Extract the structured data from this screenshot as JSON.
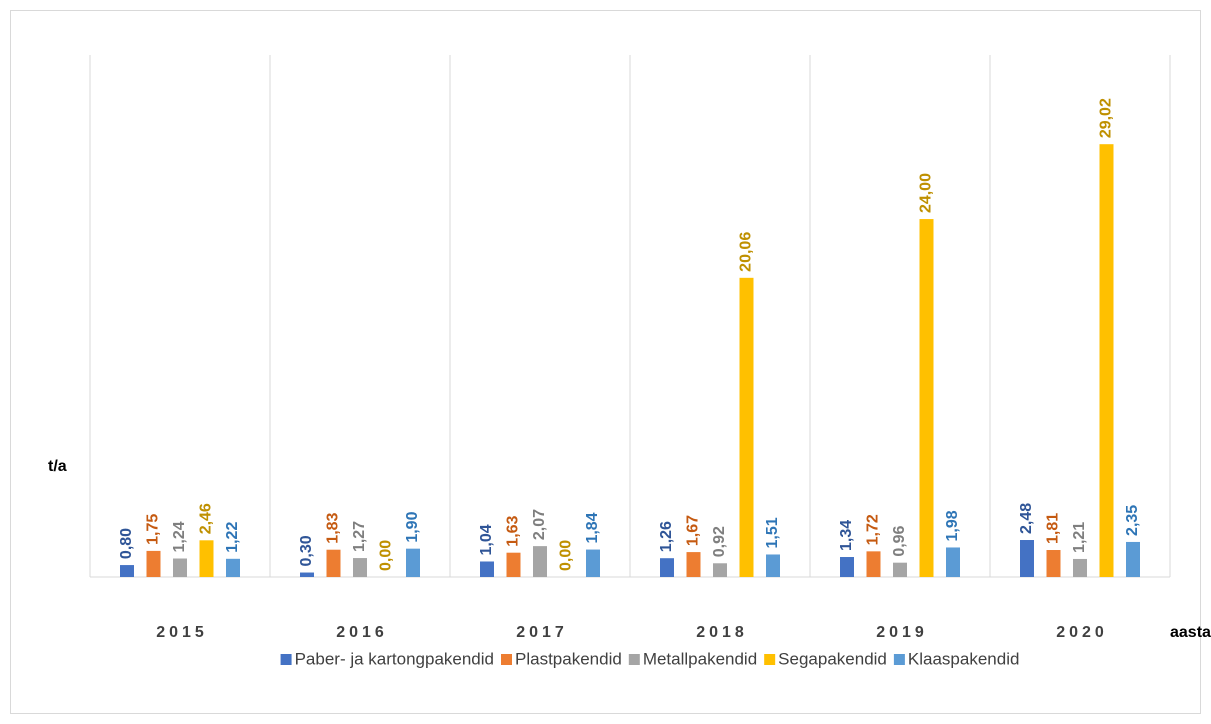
{
  "chart_data": {
    "type": "bar",
    "y_label": "t/a",
    "x_label": "aasta",
    "categories": [
      "2015",
      "2016",
      "2017",
      "2018",
      "2019",
      "2020"
    ],
    "ylim": [
      0,
      35
    ],
    "grid": true,
    "legend": "bottom",
    "series": [
      {
        "name": "Paber- ja kartongpakendid",
        "color": "#4472c4",
        "label_color": "#2f5597",
        "values": [
          0.8,
          0.3,
          1.04,
          1.26,
          1.34,
          2.48
        ],
        "value_labels": [
          "0,80",
          "0,30",
          "1,04",
          "1,26",
          "1,34",
          "2,48"
        ]
      },
      {
        "name": "Plastpakendid",
        "color": "#ed7d31",
        "label_color": "#c55a11",
        "values": [
          1.75,
          1.83,
          1.63,
          1.67,
          1.72,
          1.81
        ],
        "value_labels": [
          "1,75",
          "1,83",
          "1,63",
          "1,67",
          "1,72",
          "1,81"
        ]
      },
      {
        "name": "Metallpakendid",
        "color": "#a5a5a5",
        "label_color": "#7f7f7f",
        "values": [
          1.24,
          1.27,
          2.07,
          0.92,
          0.96,
          1.21
        ],
        "value_labels": [
          "1,24",
          "1,27",
          "2,07",
          "0,92",
          "0,96",
          "1,21"
        ]
      },
      {
        "name": "Segapakendid",
        "color": "#ffc000",
        "label_color": "#bf9000",
        "values": [
          2.46,
          0.0,
          0.0,
          20.06,
          24.0,
          29.02
        ],
        "value_labels": [
          "2,46",
          "0,00",
          "0,00",
          "20,06",
          "24,00",
          "29,02"
        ]
      },
      {
        "name": "Klaaspakendid",
        "color": "#5b9bd5",
        "label_color": "#2e75b6",
        "values": [
          1.22,
          1.9,
          1.84,
          1.51,
          1.98,
          2.35
        ],
        "value_labels": [
          "1,22",
          "1,90",
          "1,84",
          "1,51",
          "1,98",
          "2,35"
        ]
      }
    ]
  }
}
